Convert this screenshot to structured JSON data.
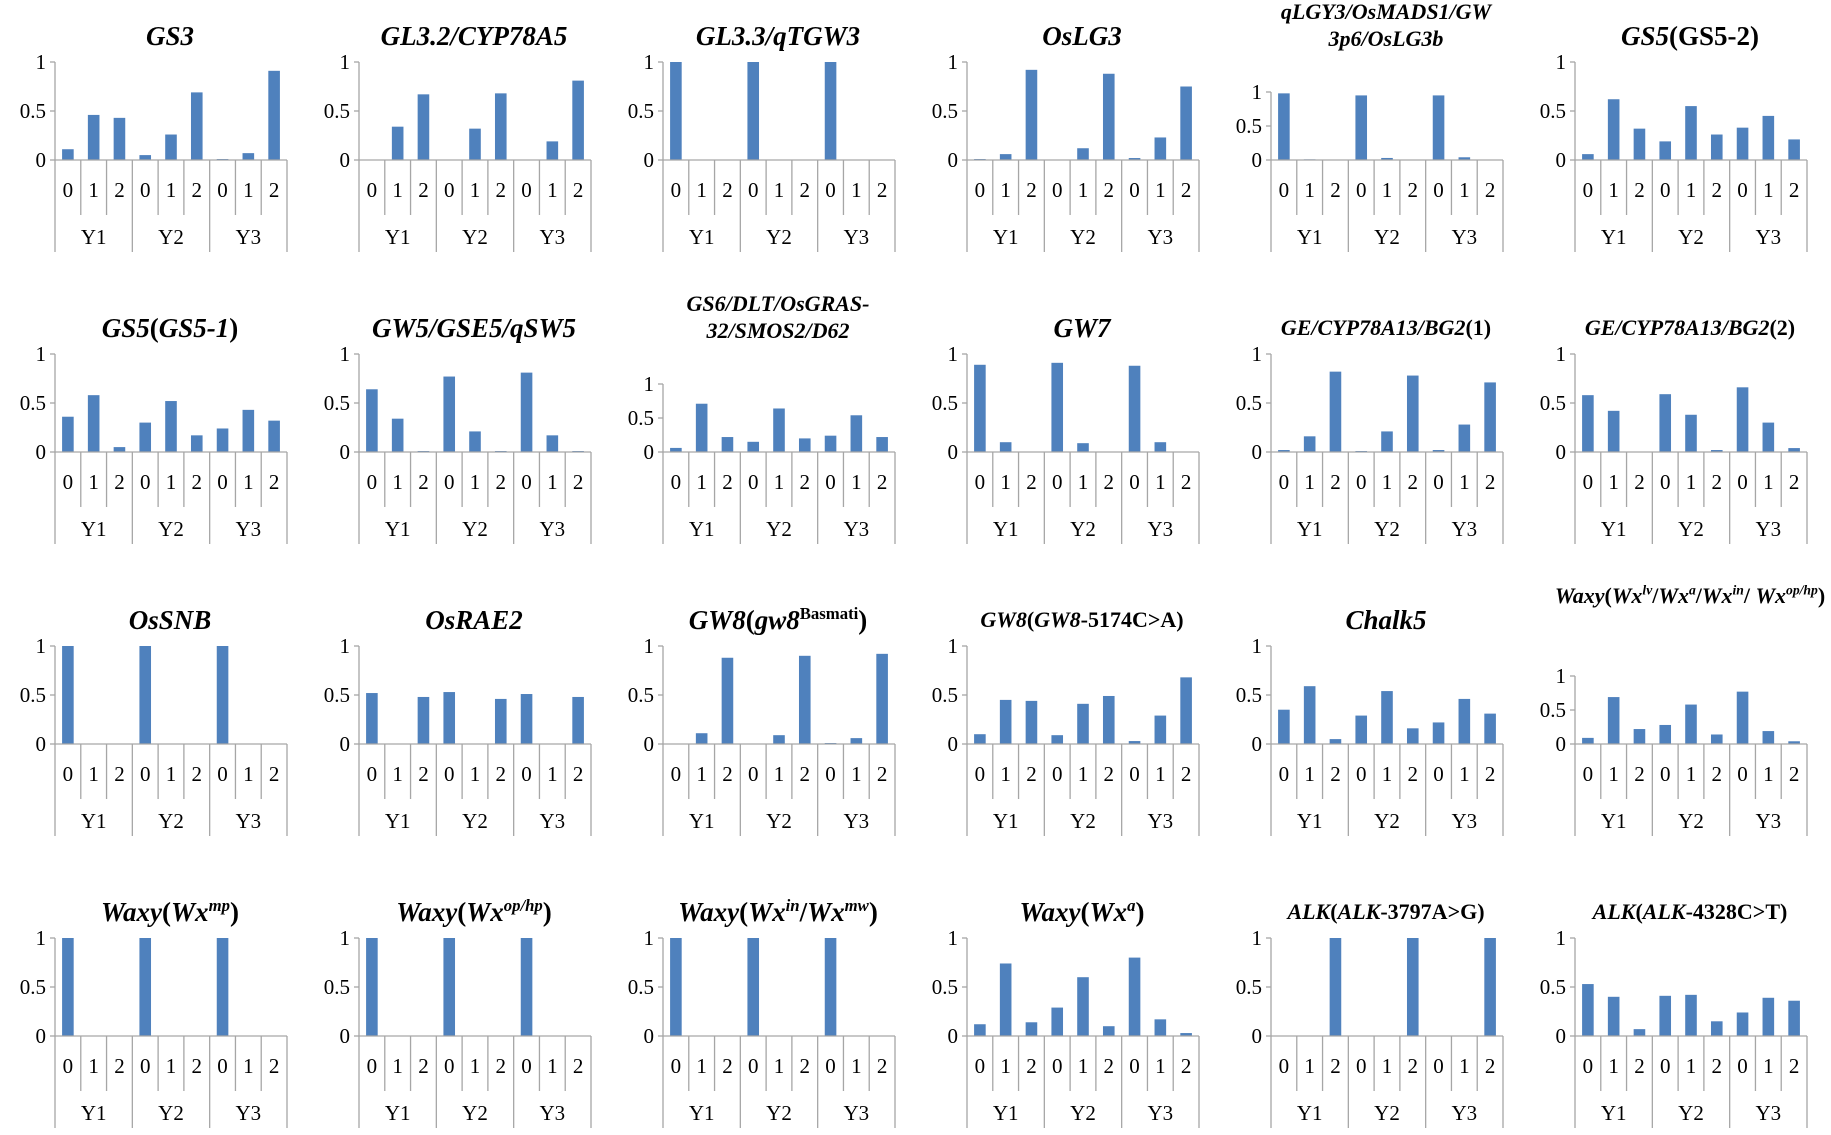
{
  "chart_data": {
    "type": "bar",
    "layout": "grid 6 columns x 4 rows",
    "bar_color": "#4f81bd",
    "axis_color": "#a6a6a6",
    "y_ticks": [
      "0",
      "0.5",
      "1"
    ],
    "ylim": [
      0,
      1
    ],
    "categories": {
      "groups": [
        "Y1",
        "Y2",
        "Y3"
      ],
      "levels": [
        "0",
        "1",
        "2"
      ]
    },
    "charts": [
      {
        "title": [
          {
            "text": "GS3",
            "italic": true
          }
        ],
        "values": [
          0.11,
          0.46,
          0.43,
          0.05,
          0.26,
          0.69,
          0.01,
          0.07,
          0.91
        ]
      },
      {
        "title": [
          {
            "text": "GL3.2/CYP78A5",
            "italic": true
          }
        ],
        "values": [
          0,
          0.34,
          0.67,
          0,
          0.32,
          0.68,
          0,
          0.19,
          0.81
        ]
      },
      {
        "title": [
          {
            "text": "GL3.3/qTGW3",
            "italic": true
          }
        ],
        "values": [
          1,
          0,
          0,
          1,
          0,
          0,
          1,
          0,
          0
        ]
      },
      {
        "title": [
          {
            "text": "OsLG3",
            "italic": true
          }
        ],
        "values": [
          0.01,
          0.06,
          0.92,
          0,
          0.12,
          0.88,
          0.02,
          0.23,
          0.75
        ]
      },
      {
        "title": [
          {
            "text": "qLGY3/OsMADS1/GW 3p6/OsLG3b",
            "italic": true
          }
        ],
        "values": [
          0.98,
          0.01,
          0,
          0.95,
          0.03,
          0,
          0.95,
          0.04,
          0
        ]
      },
      {
        "title": [
          {
            "text": "GS5",
            "italic": true
          },
          {
            "text": "(GS5-2)",
            "italic": false
          }
        ],
        "values": [
          0.06,
          0.62,
          0.32,
          0.19,
          0.55,
          0.26,
          0.33,
          0.45,
          0.21
        ]
      },
      {
        "title": [
          {
            "text": "GS5",
            "italic": true
          },
          {
            "text": "(",
            "italic": false
          },
          {
            "text": "GS5-1",
            "italic": true
          },
          {
            "text": ")",
            "italic": false
          }
        ],
        "values": [
          0.36,
          0.58,
          0.05,
          0.3,
          0.52,
          0.17,
          0.24,
          0.43,
          0.32
        ]
      },
      {
        "title": [
          {
            "text": "GW5/GSE5/qSW5",
            "italic": true
          }
        ],
        "values": [
          0.64,
          0.34,
          0.01,
          0.77,
          0.21,
          0.01,
          0.81,
          0.17,
          0.01
        ]
      },
      {
        "title": [
          {
            "text": "GS6/DLT/OsGRAS-32/SMOS2/D62",
            "italic": true
          }
        ],
        "values": [
          0.06,
          0.71,
          0.22,
          0.15,
          0.64,
          0.2,
          0.24,
          0.54,
          0.22
        ]
      },
      {
        "title": [
          {
            "text": "GW7",
            "italic": true
          }
        ],
        "values": [
          0.89,
          0.1,
          0,
          0.91,
          0.09,
          0,
          0.88,
          0.1,
          0
        ]
      },
      {
        "title": [
          {
            "text": "GE/CYP78A13/BG2",
            "italic": true
          },
          {
            "text": "(1)",
            "italic": false
          }
        ],
        "values": [
          0.02,
          0.16,
          0.82,
          0.01,
          0.21,
          0.78,
          0.02,
          0.28,
          0.71
        ]
      },
      {
        "title": [
          {
            "text": "GE/CYP78A13/BG2",
            "italic": true
          },
          {
            "text": "(2)",
            "italic": false
          }
        ],
        "values": [
          0.58,
          0.42,
          0,
          0.59,
          0.38,
          0.02,
          0.66,
          0.3,
          0.04
        ]
      },
      {
        "title": [
          {
            "text": "OsSNB",
            "italic": true
          }
        ],
        "values": [
          1,
          0,
          0,
          1,
          0,
          0,
          1,
          0,
          0
        ]
      },
      {
        "title": [
          {
            "text": "OsRAE2",
            "italic": true
          }
        ],
        "values": [
          0.52,
          0,
          0.48,
          0.53,
          0,
          0.46,
          0.51,
          0,
          0.48
        ]
      },
      {
        "title": [
          {
            "text": "GW8",
            "italic": true
          },
          {
            "text": "(",
            "italic": false
          },
          {
            "text": "gw8",
            "italic": true
          },
          {
            "text": "Basmati",
            "italic": false,
            "sup": true
          },
          {
            "text": ")",
            "italic": false
          }
        ],
        "values": [
          0,
          0.11,
          0.88,
          0,
          0.09,
          0.9,
          0.01,
          0.06,
          0.92
        ]
      },
      {
        "title": [
          {
            "text": "GW8",
            "italic": true
          },
          {
            "text": "(",
            "italic": false
          },
          {
            "text": "GW8",
            "italic": true
          },
          {
            "text": "-5174C>A)",
            "italic": false
          }
        ],
        "values": [
          0.1,
          0.45,
          0.44,
          0.09,
          0.41,
          0.49,
          0.03,
          0.29,
          0.68
        ]
      },
      {
        "title": [
          {
            "text": "Chalk5",
            "italic": true
          }
        ],
        "values": [
          0.35,
          0.59,
          0.05,
          0.29,
          0.54,
          0.16,
          0.22,
          0.46,
          0.31
        ]
      },
      {
        "title": [
          {
            "text": "Waxy",
            "italic": true
          },
          {
            "text": "(",
            "italic": false
          },
          {
            "text": "Wx",
            "italic": true
          },
          {
            "text": "lv",
            "italic": true,
            "sup": true
          },
          {
            "text": "/",
            "italic": false
          },
          {
            "text": "Wx",
            "italic": true
          },
          {
            "text": "a",
            "italic": true,
            "sup": true
          },
          {
            "text": "/",
            "italic": false
          },
          {
            "text": "Wx",
            "italic": true
          },
          {
            "text": "in",
            "italic": true,
            "sup": true
          },
          {
            "text": "/ ",
            "italic": false
          },
          {
            "text": "Wx",
            "italic": true
          },
          {
            "text": "op/hp",
            "italic": true,
            "sup": true
          },
          {
            "text": ")",
            "italic": false
          }
        ],
        "values": [
          0.09,
          0.69,
          0.22,
          0.28,
          0.58,
          0.14,
          0.77,
          0.19,
          0.04
        ]
      },
      {
        "title": [
          {
            "text": "Waxy",
            "italic": true
          },
          {
            "text": "(",
            "italic": false
          },
          {
            "text": "Wx",
            "italic": true
          },
          {
            "text": "mp",
            "italic": true,
            "sup": true
          },
          {
            "text": ")",
            "italic": false
          }
        ],
        "values": [
          1,
          0,
          0,
          1,
          0,
          0,
          1,
          0,
          0
        ]
      },
      {
        "title": [
          {
            "text": "Waxy",
            "italic": true
          },
          {
            "text": "(",
            "italic": false
          },
          {
            "text": "Wx",
            "italic": true
          },
          {
            "text": "op/hp",
            "italic": true,
            "sup": true
          },
          {
            "text": ")",
            "italic": false
          }
        ],
        "values": [
          1,
          0,
          0,
          1,
          0,
          0,
          1,
          0,
          0
        ]
      },
      {
        "title": [
          {
            "text": "Waxy",
            "italic": true
          },
          {
            "text": "(",
            "italic": false
          },
          {
            "text": "Wx",
            "italic": true
          },
          {
            "text": "in",
            "italic": true,
            "sup": true
          },
          {
            "text": "/",
            "italic": false
          },
          {
            "text": "Wx",
            "italic": true
          },
          {
            "text": "mw",
            "italic": true,
            "sup": true
          },
          {
            "text": ")",
            "italic": false
          }
        ],
        "values": [
          1,
          0,
          0,
          1,
          0,
          0,
          1,
          0,
          0
        ]
      },
      {
        "title": [
          {
            "text": "Waxy",
            "italic": true
          },
          {
            "text": "(",
            "italic": false
          },
          {
            "text": "Wx",
            "italic": true
          },
          {
            "text": "a",
            "italic": true,
            "sup": true
          },
          {
            "text": ")",
            "italic": false
          }
        ],
        "values": [
          0.12,
          0.74,
          0.14,
          0.29,
          0.6,
          0.1,
          0.8,
          0.17,
          0.03
        ]
      },
      {
        "title": [
          {
            "text": "ALK",
            "italic": true
          },
          {
            "text": "(",
            "italic": false
          },
          {
            "text": "ALK",
            "italic": true
          },
          {
            "text": "-3797A>G)",
            "italic": false
          }
        ],
        "values": [
          0,
          0,
          1,
          0,
          0,
          1,
          0,
          0,
          1
        ]
      },
      {
        "title": [
          {
            "text": "ALK",
            "italic": true
          },
          {
            "text": "(",
            "italic": false
          },
          {
            "text": "ALK",
            "italic": true
          },
          {
            "text": "-4328C>T)",
            "italic": false
          }
        ],
        "values": [
          0.53,
          0.4,
          0.07,
          0.41,
          0.42,
          0.15,
          0.24,
          0.39,
          0.36
        ]
      }
    ]
  }
}
